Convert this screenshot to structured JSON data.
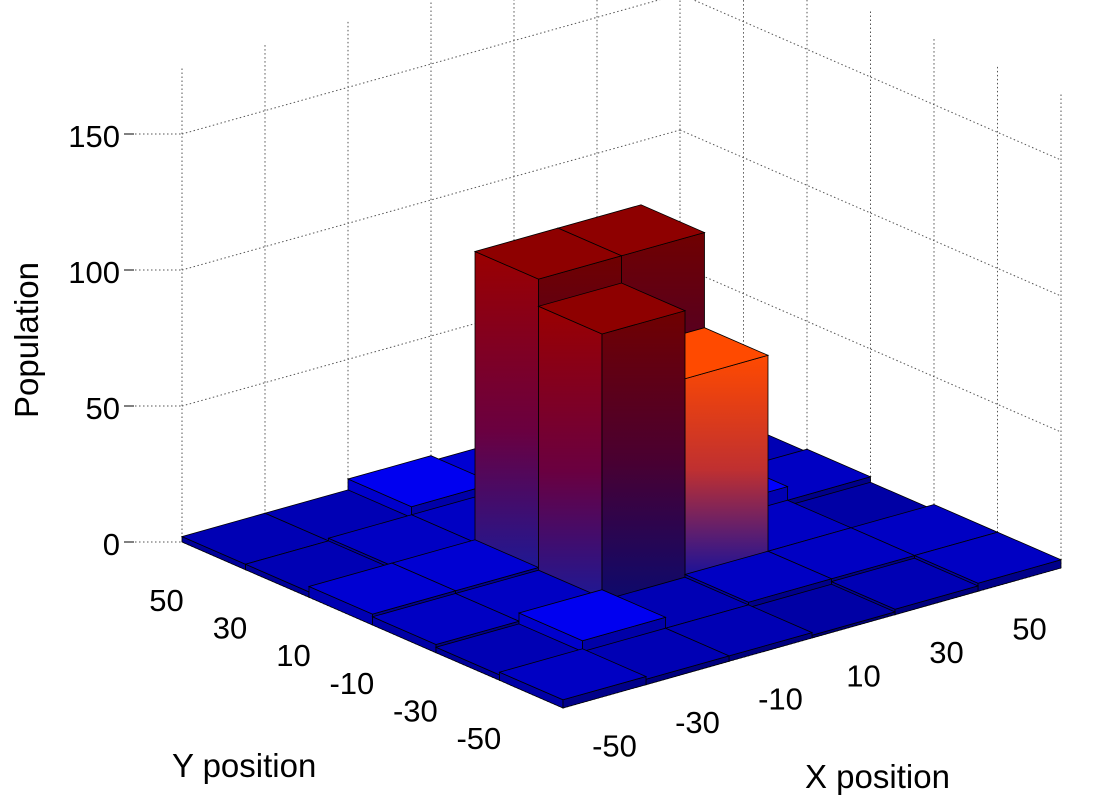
{
  "chart_data": {
    "type": "bar3d",
    "title": "",
    "xlabel": "X position",
    "ylabel": "Y position",
    "zlabel": "Population",
    "x_categories": [
      -50,
      -30,
      -10,
      10,
      30,
      50
    ],
    "y_categories": [
      50,
      30,
      10,
      -10,
      -30,
      -50
    ],
    "z_ticks": [
      0,
      50,
      100,
      150
    ],
    "zlim": [
      0,
      150
    ],
    "grid": true,
    "colormap": "blue-to-red-to-orange",
    "colors": {
      "low": "#0000b4",
      "mid": "#8b0000",
      "high": "#ff4500"
    },
    "values": [
      [
        2,
        2,
        6,
        4,
        5,
        1
      ],
      [
        2,
        3,
        3,
        5,
        3,
        2
      ],
      [
        4,
        4,
        110,
        110,
        8,
        3
      ],
      [
        3,
        3,
        100,
        75,
        3,
        1
      ],
      [
        2,
        6,
        2,
        3,
        3,
        3
      ],
      [
        3,
        2,
        2,
        1,
        2,
        3
      ]
    ]
  }
}
